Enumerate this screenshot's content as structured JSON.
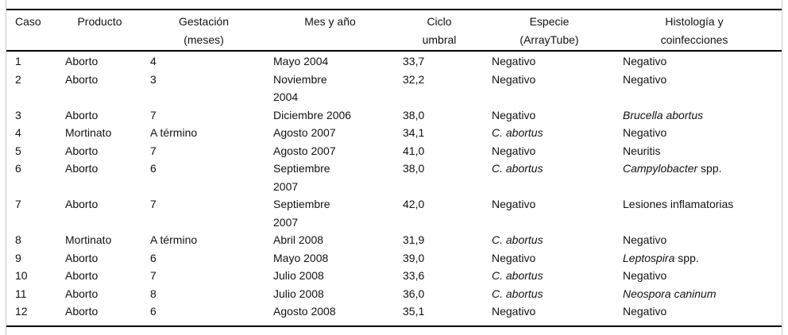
{
  "colors": {
    "background": "#ffffff",
    "rule": "#000000",
    "frame_border": "#c9c9c9",
    "text": "#121212"
  },
  "table": {
    "columns": [
      {
        "id": "caso",
        "label": "Caso"
      },
      {
        "id": "producto",
        "label": "Producto"
      },
      {
        "id": "gestacion",
        "label": "Gestación\n(meses)"
      },
      {
        "id": "mes",
        "label": "Mes y año"
      },
      {
        "id": "ciclo",
        "label": "Ciclo\numbral"
      },
      {
        "id": "especie",
        "label": "Especie\n(ArrayTube)"
      },
      {
        "id": "histologia",
        "label": "Histología y\ncoinfecciones"
      }
    ],
    "rows": [
      {
        "caso": "1",
        "producto": "Aborto",
        "gestacion": "4",
        "mes": "Mayo 2004",
        "ciclo": "33,7",
        "especie": [
          {
            "text": "Negativo",
            "italic": false
          }
        ],
        "histologia": [
          {
            "text": "Negativo",
            "italic": false
          }
        ]
      },
      {
        "caso": "2",
        "producto": "Aborto",
        "gestacion": "3",
        "mes": "Noviembre\n2004",
        "ciclo": "32,2",
        "especie": [
          {
            "text": "Negativo",
            "italic": false
          }
        ],
        "histologia": [
          {
            "text": "Negativo",
            "italic": false
          }
        ]
      },
      {
        "caso": "3",
        "producto": "Aborto",
        "gestacion": "7",
        "mes": "Diciembre 2006",
        "ciclo": "38,0",
        "especie": [
          {
            "text": "Negativo",
            "italic": false
          }
        ],
        "histologia": [
          {
            "text": "Brucella abortus",
            "italic": true
          }
        ]
      },
      {
        "caso": "4",
        "producto": "Mortinato",
        "gestacion": "A término",
        "mes": "Agosto 2007",
        "ciclo": "34,1",
        "especie": [
          {
            "text": "C. abortus",
            "italic": true
          }
        ],
        "histologia": [
          {
            "text": "Negativo",
            "italic": false
          }
        ]
      },
      {
        "caso": "5",
        "producto": "Aborto",
        "gestacion": "7",
        "mes": "Agosto 2007",
        "ciclo": "41,0",
        "especie": [
          {
            "text": "Negativo",
            "italic": false
          }
        ],
        "histologia": [
          {
            "text": "Neuritis",
            "italic": false
          }
        ]
      },
      {
        "caso": "6",
        "producto": "Aborto",
        "gestacion": "6",
        "mes": "Septiembre\n2007",
        "ciclo": "38,0",
        "especie": [
          {
            "text": "C. abortus",
            "italic": true
          }
        ],
        "histologia": [
          {
            "text": "Campylobacter",
            "italic": true
          },
          {
            "text": " spp.",
            "italic": false
          }
        ]
      },
      {
        "caso": "7",
        "producto": "Aborto",
        "gestacion": "7",
        "mes": "Septiembre\n2007",
        "ciclo": "42,0",
        "especie": [
          {
            "text": "Negativo",
            "italic": false
          }
        ],
        "histologia": [
          {
            "text": "Lesiones inflamatorias",
            "italic": false
          }
        ]
      },
      {
        "caso": "8",
        "producto": "Mortinato",
        "gestacion": "A término",
        "mes": "Abril 2008",
        "ciclo": "31,9",
        "especie": [
          {
            "text": "C. abortus",
            "italic": true
          }
        ],
        "histologia": [
          {
            "text": "Negativo",
            "italic": false
          }
        ]
      },
      {
        "caso": "9",
        "producto": "Aborto",
        "gestacion": "6",
        "mes": "Mayo 2008",
        "ciclo": "39,0",
        "especie": [
          {
            "text": "Negativo",
            "italic": false
          }
        ],
        "histologia": [
          {
            "text": "Leptospira",
            "italic": true
          },
          {
            "text": " spp.",
            "italic": false
          }
        ]
      },
      {
        "caso": "10",
        "producto": "Aborto",
        "gestacion": "7",
        "mes": "Julio 2008",
        "ciclo": "33,6",
        "especie": [
          {
            "text": "C. abortus",
            "italic": true
          }
        ],
        "histologia": [
          {
            "text": "Negativo",
            "italic": false
          }
        ]
      },
      {
        "caso": "11",
        "producto": "Aborto",
        "gestacion": "8",
        "mes": "Julio 2008",
        "ciclo": "36,0",
        "especie": [
          {
            "text": "C. abortus",
            "italic": true
          }
        ],
        "histologia": [
          {
            "text": "Neospora caninum",
            "italic": true
          }
        ]
      },
      {
        "caso": "12",
        "producto": "Aborto",
        "gestacion": "6",
        "mes": "Agosto 2008",
        "ciclo": "35,1",
        "especie": [
          {
            "text": "Negativo",
            "italic": false
          }
        ],
        "histologia": [
          {
            "text": "Negativo",
            "italic": false
          }
        ]
      }
    ]
  }
}
